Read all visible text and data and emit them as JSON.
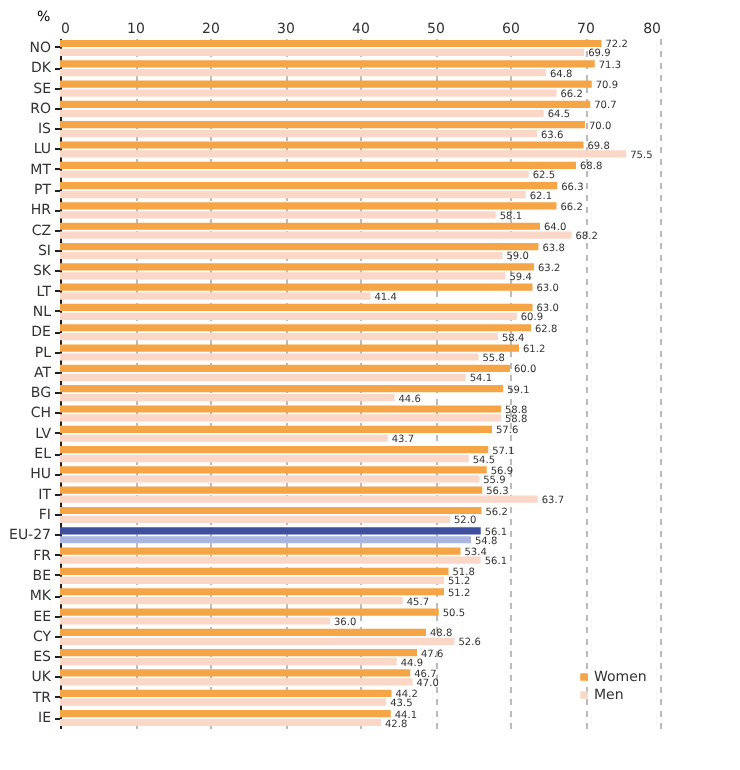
{
  "chart_data": {
    "type": "bar",
    "orientation": "horizontal",
    "xlabel": "%",
    "categories": [
      "NO",
      "DK",
      "SE",
      "RO",
      "IS",
      "LU",
      "MT",
      "PT",
      "HR",
      "CZ",
      "SI",
      "SK",
      "LT",
      "NL",
      "DE",
      "PL",
      "AT",
      "BG",
      "CH",
      "LV",
      "EL",
      "HU",
      "IT",
      "FI",
      "EU-27",
      "FR",
      "BE",
      "MK",
      "EE",
      "CY",
      "ES",
      "UK",
      "TR",
      "IE"
    ],
    "series": [
      {
        "name": "Women",
        "color": "#f5a545",
        "colors": [
          "#f5a545",
          "#f5a545",
          "#f5a545",
          "#f5a545",
          "#f5a545",
          "#f5a545",
          "#f5a545",
          "#f5a545",
          "#f5a545",
          "#f5a545",
          "#f5a545",
          "#f5a545",
          "#f5a545",
          "#f5a545",
          "#f5a545",
          "#f5a545",
          "#f5a545",
          "#f5a545",
          "#f5a545",
          "#f5a545",
          "#f5a545",
          "#f5a545",
          "#f5a545",
          "#f5a545",
          "#3e4fa0",
          "#f5a545",
          "#f5a545",
          "#f5a545",
          "#f5a545",
          "#f5a545",
          "#f5a545",
          "#f5a545",
          "#f5a545",
          "#f5a545"
        ],
        "values": [
          72.2,
          71.3,
          70.9,
          70.7,
          70.0,
          69.8,
          68.8,
          66.3,
          66.2,
          64.0,
          63.8,
          63.2,
          63.0,
          63.0,
          62.8,
          61.2,
          60.0,
          59.1,
          58.8,
          57.6,
          57.1,
          56.9,
          56.3,
          56.2,
          56.1,
          53.4,
          51.8,
          51.2,
          50.5,
          48.8,
          47.6,
          46.7,
          44.2,
          44.1
        ],
        "value_labels": [
          "72.2",
          "71.3",
          "70.9",
          "70.7",
          "70.0",
          "69.8",
          "68.8",
          "66.3",
          "66.2",
          "64.0",
          "63.8",
          "63.2",
          "63.0",
          "63.0",
          "62.8",
          "61.2",
          "60.0",
          "59.1",
          "58.8",
          "57.6",
          "57.1",
          "56.9",
          "56.3",
          "56.2",
          "56.1",
          "53.4",
          "51.8",
          "51.2",
          "50.5",
          "48.8",
          "47.6",
          "46.7",
          "44.2",
          "44.1"
        ]
      },
      {
        "name": "Men",
        "color": "#fbd7c8",
        "colors": [
          "#fbd7c8",
          "#fbd7c8",
          "#fbd7c8",
          "#fbd7c8",
          "#fbd7c8",
          "#fbd7c8",
          "#fbd7c8",
          "#fbd7c8",
          "#fbd7c8",
          "#fbd7c8",
          "#fbd7c8",
          "#fbd7c8",
          "#fbd7c8",
          "#fbd7c8",
          "#fbd7c8",
          "#fbd7c8",
          "#fbd7c8",
          "#fbd7c8",
          "#fbd7c8",
          "#fbd7c8",
          "#fbd7c8",
          "#fbd7c8",
          "#fbd7c8",
          "#fbd7c8",
          "#aab5e2",
          "#fbd7c8",
          "#fbd7c8",
          "#fbd7c8",
          "#fbd7c8",
          "#fbd7c8",
          "#fbd7c8",
          "#fbd7c8",
          "#fbd7c8",
          "#fbd7c8"
        ],
        "values": [
          69.9,
          64.8,
          66.2,
          64.5,
          63.6,
          75.5,
          62.5,
          62.1,
          58.1,
          68.2,
          59.0,
          59.4,
          41.4,
          60.9,
          58.4,
          55.8,
          54.1,
          44.6,
          58.8,
          43.7,
          54.5,
          55.9,
          63.7,
          52.0,
          54.8,
          56.1,
          51.2,
          45.7,
          36.0,
          52.6,
          44.9,
          47.0,
          43.5,
          42.8
        ],
        "value_labels": [
          "69.9",
          "64.8",
          "66.2",
          "64.5",
          "63.6",
          "75.5",
          "62.5",
          "62.1",
          "58.1",
          "68.2",
          "59.0",
          "59.4",
          "41.4",
          "60.9",
          "58.4",
          "55.8",
          "54.1",
          "44.6",
          "58.8",
          "43.7",
          "54.5",
          "55.9",
          "63.7",
          "52.0",
          "54.8",
          "56.1",
          "51.2",
          "45.7",
          "36.0",
          "52.6",
          "44.9",
          "47.0",
          "43.5",
          "42.8"
        ]
      }
    ],
    "xlim": [
      0,
      80
    ],
    "xticks": [
      0,
      10,
      20,
      30,
      40,
      50,
      60,
      70,
      80
    ],
    "grid": "x",
    "legend": "bottom right"
  }
}
